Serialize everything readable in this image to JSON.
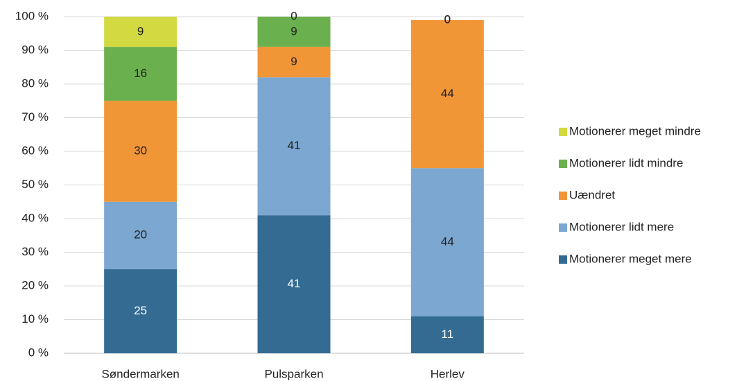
{
  "chart_data": {
    "type": "stacked_bar",
    "categories": [
      "Søndermarken",
      "Pulsparken",
      "Herlev"
    ],
    "series": [
      {
        "name": "Motionerer meget mere",
        "color": "#346b93",
        "values": [
          25,
          41,
          11
        ]
      },
      {
        "name": "Motionerer lidt mere",
        "color": "#7ba7d0",
        "values": [
          20,
          41,
          44
        ]
      },
      {
        "name": "Uændret",
        "color": "#f09636",
        "values": [
          30,
          9,
          44
        ]
      },
      {
        "name": "Motionerer lidt mindre",
        "color": "#6bb04e",
        "values": [
          16,
          9,
          0
        ]
      },
      {
        "name": "Motionerer meget mindre",
        "color": "#d3d941",
        "values": [
          9,
          0,
          0
        ]
      }
    ],
    "ylim": [
      0,
      100
    ],
    "yticks": [
      {
        "value": 0,
        "label": "0 %"
      },
      {
        "value": 10,
        "label": "10 %"
      },
      {
        "value": 20,
        "label": "20 %"
      },
      {
        "value": 30,
        "label": "30 %"
      },
      {
        "value": 40,
        "label": "40 %"
      },
      {
        "value": 50,
        "label": "50 %"
      },
      {
        "value": 60,
        "label": "60 %"
      },
      {
        "value": 70,
        "label": "70 %"
      },
      {
        "value": 80,
        "label": "80 %"
      },
      {
        "value": 90,
        "label": "90 %"
      },
      {
        "value": 100,
        "label": "100 %"
      }
    ],
    "grid": true,
    "legend": "right"
  }
}
